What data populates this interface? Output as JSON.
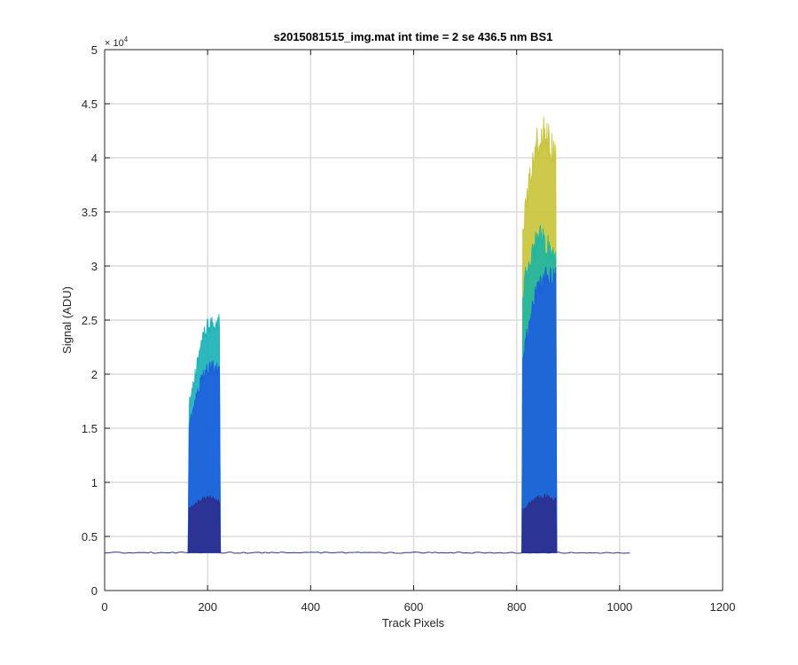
{
  "chart_data": {
    "type": "area",
    "title": "s2015081515_img.mat int time = 2 se  436.5 nm BS1",
    "xlabel": "Track Pixels",
    "ylabel": "Signal (ADU)",
    "xlim": [
      0,
      1200
    ],
    "ylim": [
      0,
      50000
    ],
    "x_ticks": [
      0,
      200,
      400,
      600,
      800,
      1000,
      1200
    ],
    "x_tick_labels": [
      "0",
      "200",
      "400",
      "600",
      "800",
      "1000",
      "1200"
    ],
    "y_ticks": [
      0,
      5000,
      10000,
      15000,
      20000,
      25000,
      30000,
      35000,
      40000,
      45000,
      50000
    ],
    "y_tick_labels": [
      "0",
      "0.5",
      "1",
      "1.5",
      "2",
      "2.5",
      "3",
      "3.5",
      "4",
      "4.5",
      "5"
    ],
    "y_exponent_label": "× 10",
    "y_exponent_power": "4",
    "grid": true,
    "baseline": 3500,
    "baseline_x_range": [
      0,
      1023
    ],
    "peaks": [
      {
        "x_start": 162,
        "x_end": 225,
        "layers": [
          {
            "level": "outer",
            "color": "#1ab2b6",
            "top_left": 19000,
            "top_right": 28000
          },
          {
            "level": "middle",
            "color": "#1e5fdc",
            "top_left": 17000,
            "top_right": 23000
          },
          {
            "level": "inner",
            "color": "#2d2f8f",
            "top_left": 8000,
            "top_right": 9000
          }
        ]
      },
      {
        "x_start": 810,
        "x_end": 878,
        "layers": [
          {
            "level": "outer",
            "color": "#c8c43c",
            "top_left": 38000,
            "top_right": 45500
          },
          {
            "level": "teal",
            "color": "#21b5a0",
            "top_left": 31000,
            "top_right": 34000
          },
          {
            "level": "middle",
            "color": "#1e5fdc",
            "top_left": 24000,
            "top_right": 32500
          },
          {
            "level": "inner",
            "color": "#2d2f8f",
            "top_left": 8000,
            "top_right": 9200
          }
        ]
      }
    ],
    "colors": {
      "baseline": "#2d2f8f",
      "grid": "#dcdcdc",
      "axis": "#262626"
    }
  }
}
